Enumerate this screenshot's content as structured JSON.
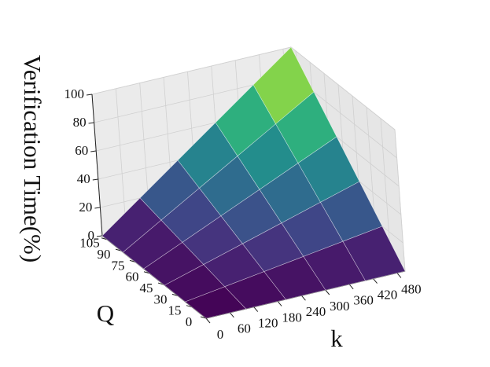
{
  "chart_data": {
    "type": "surface",
    "xlabel": "k",
    "ylabel": "Q",
    "zlabel": "Verification Time(%)",
    "x": [
      0,
      100,
      200,
      300,
      400,
      500
    ],
    "y": [
      0,
      22,
      44,
      66,
      88,
      110
    ],
    "z": [
      [
        0,
        0,
        0,
        0,
        0,
        0
      ],
      [
        0,
        4,
        8,
        12,
        16,
        20
      ],
      [
        0,
        8,
        16,
        24,
        32,
        40
      ],
      [
        0,
        12,
        24,
        36,
        48,
        60
      ],
      [
        0,
        16,
        32,
        48,
        64,
        80
      ],
      [
        0,
        20,
        40,
        60,
        80,
        100
      ]
    ],
    "xlim": [
      0,
      500
    ],
    "ylim": [
      0,
      110
    ],
    "zlim": [
      0,
      100
    ],
    "xticks": [
      0,
      60,
      120,
      180,
      240,
      300,
      360,
      420,
      480
    ],
    "yticks": [
      0,
      15,
      30,
      45,
      60,
      75,
      90,
      105
    ],
    "zticks": [
      0,
      20,
      40,
      60,
      80,
      100
    ],
    "colormap": "viridis",
    "grid": true
  }
}
